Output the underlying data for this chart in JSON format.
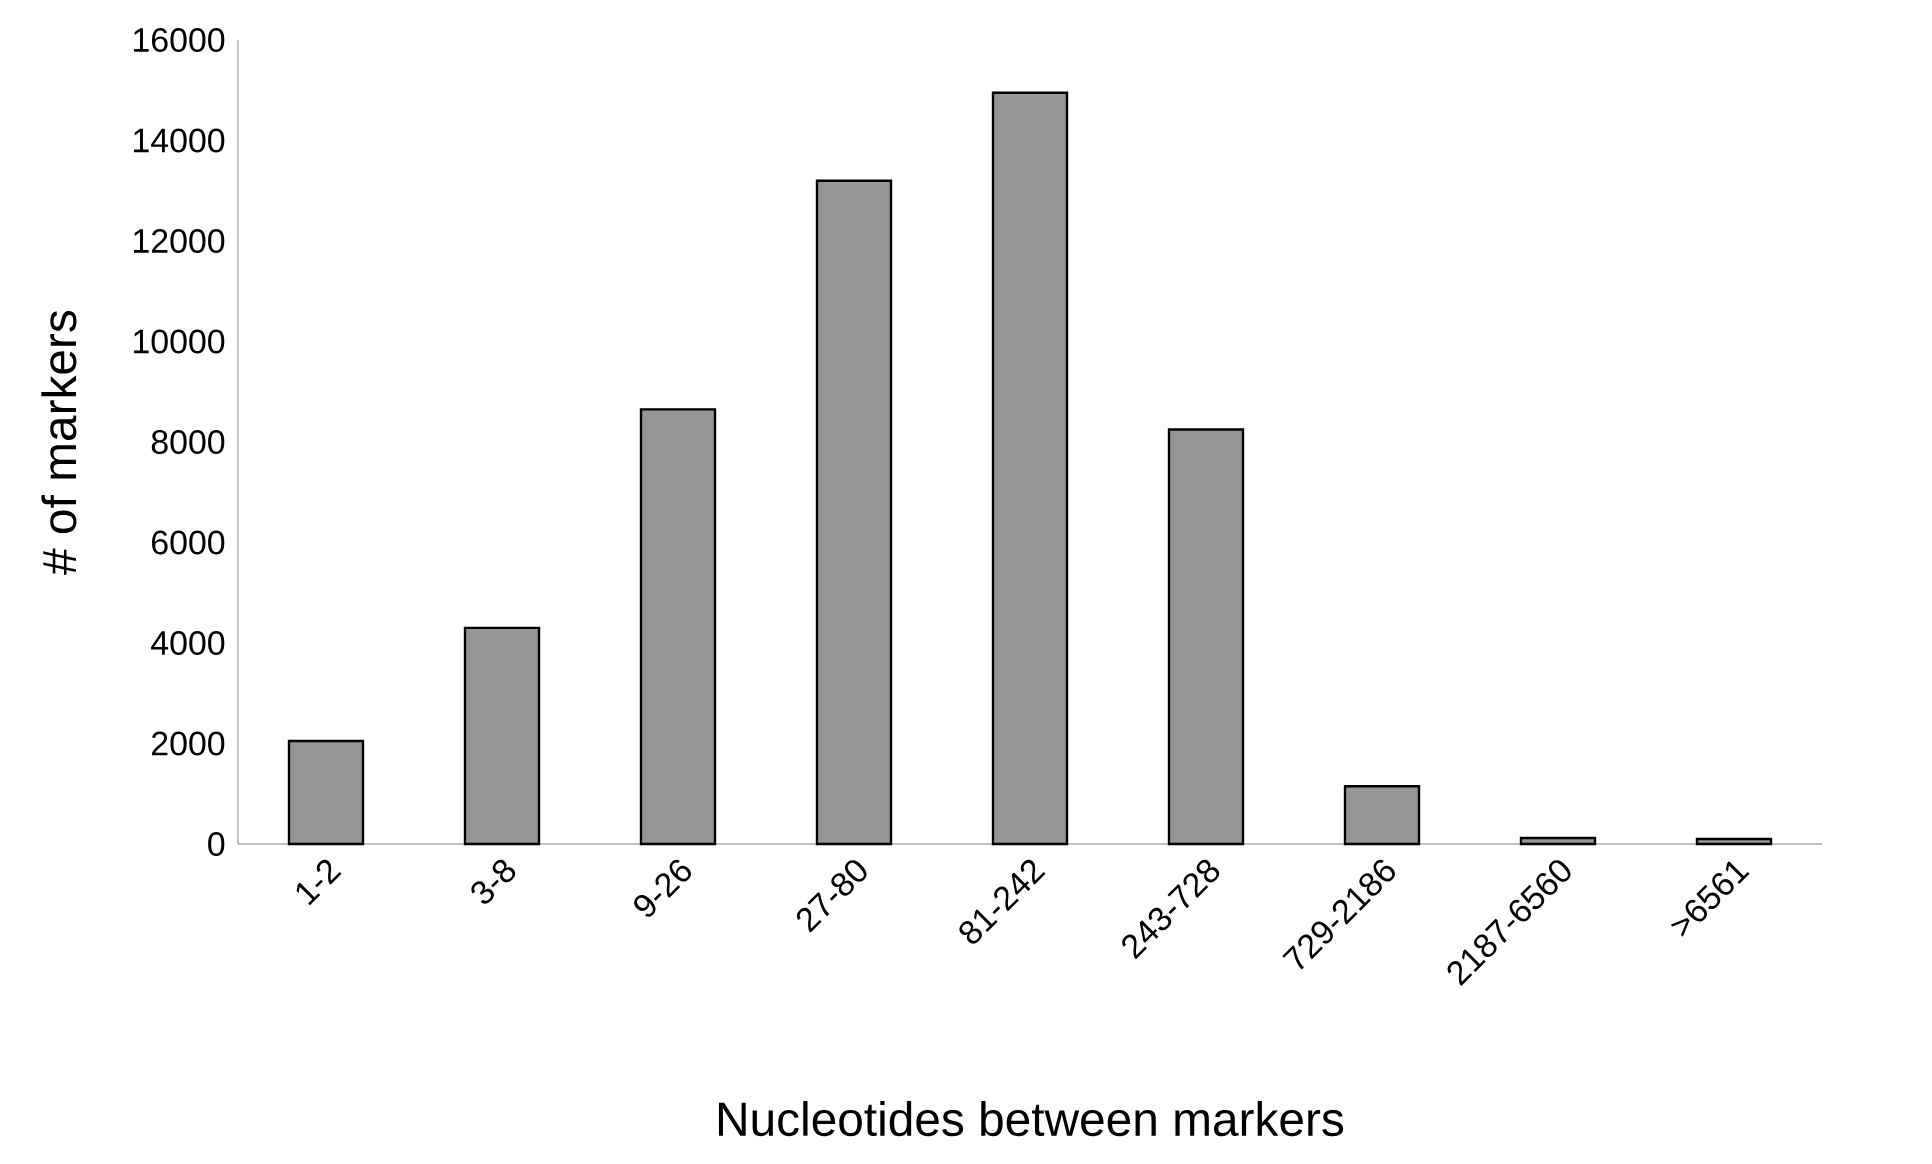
{
  "chart_data": {
    "type": "bar",
    "xlabel": "Nucleotides between markers",
    "ylabel": "# of markers",
    "categories": [
      "1-2",
      "3-8",
      "9-26",
      "27-80",
      "81-242",
      "243-728",
      "729-2186",
      "2187-6560",
      ">6561"
    ],
    "values": [
      2050,
      4300,
      8650,
      13200,
      14950,
      8250,
      1150,
      120,
      100
    ],
    "color": "#969696",
    "ylim": [
      0,
      16000
    ],
    "yticks": [
      0,
      2000,
      4000,
      6000,
      8000,
      10000,
      12000,
      14000,
      16000
    ],
    "grid": false
  }
}
